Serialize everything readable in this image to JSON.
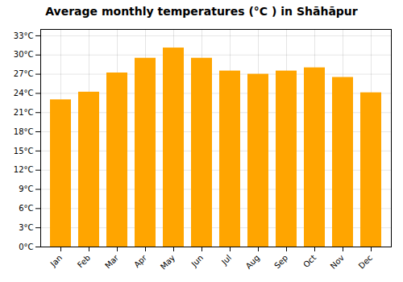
{
  "chart_data": {
    "type": "bar",
    "title": "Average monthly temperatures (°C ) in Shāhāpur",
    "categories": [
      "Jan",
      "Feb",
      "Mar",
      "Apr",
      "May",
      "Jun",
      "Jul",
      "Aug",
      "Sep",
      "Oct",
      "Nov",
      "Dec"
    ],
    "values": [
      23.0,
      24.2,
      27.2,
      29.5,
      31.1,
      29.5,
      27.5,
      27.0,
      27.5,
      28.0,
      26.5,
      24.1
    ],
    "color": "#FFA500",
    "ylim": [
      0,
      34
    ],
    "yticks": [
      {
        "value": 0,
        "label": "0°C"
      },
      {
        "value": 3,
        "label": "3°C"
      },
      {
        "value": 6,
        "label": "6°C"
      },
      {
        "value": 9,
        "label": "9°C"
      },
      {
        "value": 12,
        "label": "12°C"
      },
      {
        "value": 15,
        "label": "15°C"
      },
      {
        "value": 18,
        "label": "18°C"
      },
      {
        "value": 21,
        "label": "21°C"
      },
      {
        "value": 24,
        "label": "24°C"
      },
      {
        "value": 27,
        "label": "27°C"
      },
      {
        "value": 30,
        "label": "30°C"
      },
      {
        "value": 33,
        "label": "33°C"
      }
    ],
    "grid": true
  }
}
